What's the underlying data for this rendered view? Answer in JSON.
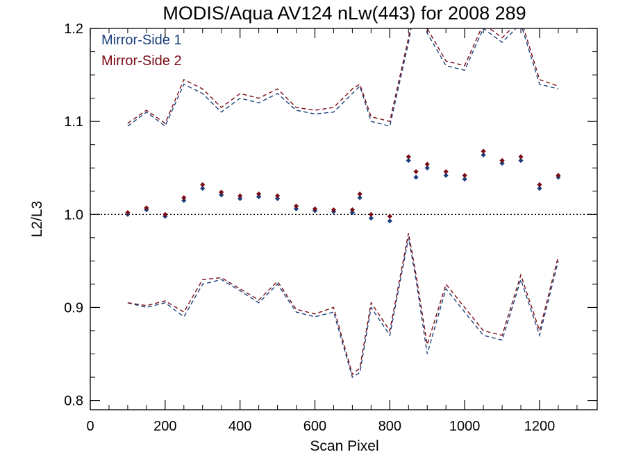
{
  "chart_data": {
    "type": "scatter",
    "title": "MODIS/Aqua AV124 nLw(443) for 2008 289",
    "xlabel": "Scan Pixel",
    "ylabel": "L2/L3",
    "xlim": [
      0,
      1354
    ],
    "ylim": [
      0.79,
      1.2
    ],
    "x_ticks": [
      0,
      200,
      400,
      600,
      800,
      1000,
      1200
    ],
    "x_tick_labels": [
      "0",
      "200",
      "400",
      "600",
      "800",
      "1000",
      "1200"
    ],
    "y_ticks": [
      0.8,
      0.9,
      1.0,
      1.1,
      1.2
    ],
    "y_tick_labels": [
      "0.8",
      "0.9",
      "1.0",
      "1.1",
      "1.2"
    ],
    "reference_line": 1.0,
    "legend_position": "top-left",
    "colors": {
      "ms1": "#1a3f7c",
      "ms2": "#7a0c14"
    },
    "series": [
      {
        "name": "Mirror-Side 1",
        "color": "#1a3f7c",
        "x": [
          100,
          150,
          200,
          250,
          300,
          350,
          400,
          450,
          500,
          550,
          600,
          650,
          700,
          720,
          750,
          800,
          850,
          870,
          900,
          950,
          1000,
          1050,
          1100,
          1150,
          1200,
          1250
        ],
        "y": [
          1.0,
          1.005,
          0.998,
          1.015,
          1.028,
          1.021,
          1.017,
          1.019,
          1.017,
          1.006,
          1.004,
          1.003,
          1.002,
          1.018,
          0.996,
          0.993,
          1.058,
          1.04,
          1.05,
          1.042,
          1.038,
          1.064,
          1.055,
          1.058,
          1.028,
          1.04
        ],
        "upper": [
          1.095,
          1.11,
          1.095,
          1.14,
          1.13,
          1.11,
          1.125,
          1.12,
          1.13,
          1.112,
          1.108,
          1.11,
          1.13,
          1.138,
          1.1,
          1.095,
          1.185,
          1.23,
          1.195,
          1.16,
          1.155,
          1.2,
          1.185,
          1.205,
          1.14,
          1.135
        ],
        "lower": [
          0.905,
          0.9,
          0.905,
          0.89,
          0.925,
          0.93,
          0.918,
          0.905,
          0.925,
          0.895,
          0.89,
          0.895,
          0.825,
          0.83,
          0.9,
          0.87,
          0.975,
          0.93,
          0.85,
          0.92,
          0.895,
          0.87,
          0.865,
          0.93,
          0.87,
          0.95
        ]
      },
      {
        "name": "Mirror-Side 2",
        "color": "#7a0c14",
        "x": [
          100,
          150,
          200,
          250,
          300,
          350,
          400,
          450,
          500,
          550,
          600,
          650,
          700,
          720,
          750,
          800,
          850,
          870,
          900,
          950,
          1000,
          1050,
          1100,
          1150,
          1200,
          1250
        ],
        "y": [
          1.002,
          1.007,
          1.0,
          1.018,
          1.032,
          1.024,
          1.02,
          1.022,
          1.02,
          1.009,
          1.006,
          1.005,
          1.005,
          1.022,
          1.0,
          0.998,
          1.062,
          1.046,
          1.054,
          1.046,
          1.042,
          1.068,
          1.058,
          1.062,
          1.032,
          1.042
        ],
        "upper": [
          1.098,
          1.112,
          1.098,
          1.145,
          1.135,
          1.115,
          1.13,
          1.125,
          1.135,
          1.115,
          1.112,
          1.115,
          1.135,
          1.14,
          1.105,
          1.1,
          1.19,
          1.235,
          1.2,
          1.165,
          1.16,
          1.205,
          1.19,
          1.21,
          1.145,
          1.138
        ],
        "lower": [
          0.905,
          0.902,
          0.907,
          0.895,
          0.93,
          0.932,
          0.92,
          0.908,
          0.928,
          0.898,
          0.893,
          0.9,
          0.828,
          0.835,
          0.905,
          0.875,
          0.98,
          0.935,
          0.86,
          0.925,
          0.9,
          0.875,
          0.87,
          0.935,
          0.875,
          0.955
        ]
      }
    ]
  }
}
